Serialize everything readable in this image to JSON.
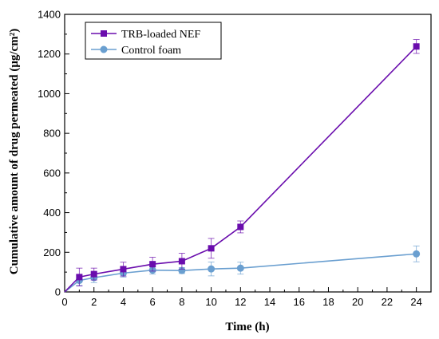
{
  "chart_data": {
    "type": "line",
    "title": "",
    "xlabel": "Time (h)",
    "ylabel": "Cumulative amount of drug permeated (μg/cm²)",
    "xlim": [
      0,
      25
    ],
    "ylim": [
      0,
      1400
    ],
    "x_ticks": [
      0,
      2,
      4,
      6,
      8,
      10,
      12,
      14,
      16,
      18,
      20,
      22,
      24
    ],
    "y_ticks": [
      0,
      200,
      400,
      600,
      800,
      1000,
      1200,
      1400
    ],
    "grid": false,
    "legend_position": "top-left",
    "series": [
      {
        "name": "TRB-loaded NEF",
        "color": "#6a0dad",
        "marker": "square",
        "x": [
          0,
          1,
          2,
          4,
          6,
          8,
          10,
          12,
          24
        ],
        "y": [
          0,
          75,
          90,
          115,
          140,
          155,
          220,
          328,
          1238
        ],
        "err": [
          0,
          45,
          30,
          35,
          35,
          40,
          50,
          30,
          35
        ]
      },
      {
        "name": "Control foam",
        "color": "#6a9fd0",
        "marker": "circle",
        "x": [
          0,
          1,
          2,
          4,
          6,
          8,
          10,
          12,
          24
        ],
        "y": [
          0,
          58,
          72,
          95,
          110,
          108,
          116,
          120,
          192
        ],
        "err": [
          0,
          25,
          25,
          20,
          20,
          15,
          35,
          30,
          40
        ]
      }
    ]
  }
}
